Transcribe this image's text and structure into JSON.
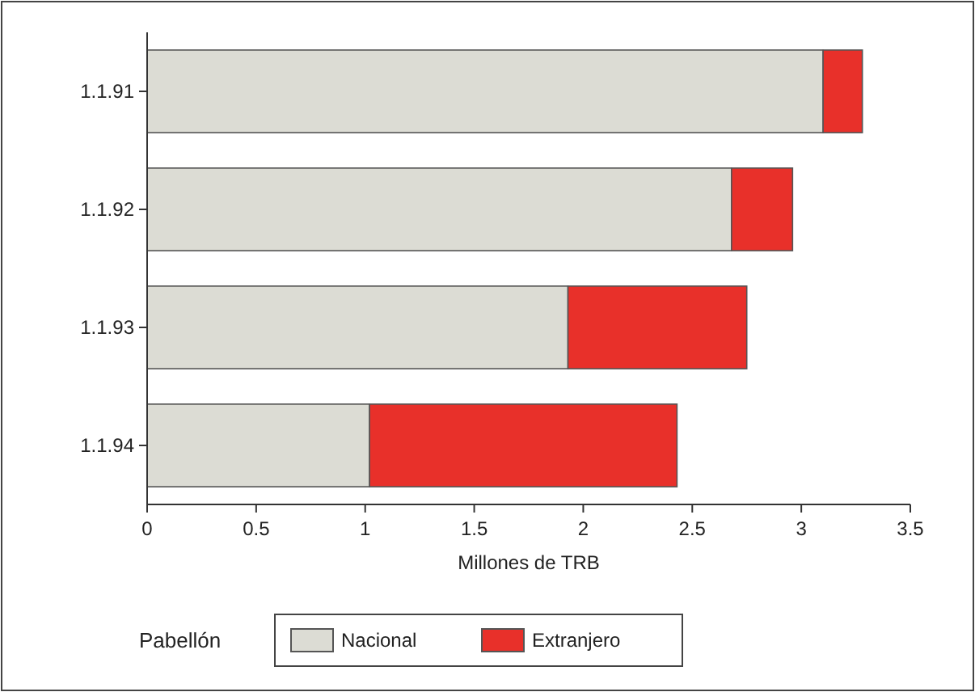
{
  "chart_data": {
    "type": "bar",
    "orientation": "horizontal",
    "stacked": true,
    "categories": [
      "1.1.91",
      "1.1.92",
      "1.1.93",
      "1.1.94"
    ],
    "series": [
      {
        "name": "Nacional",
        "color": "#dcdcd4",
        "values": [
          3.1,
          2.68,
          1.93,
          1.02
        ]
      },
      {
        "name": "Extranjero",
        "color": "#e8302a",
        "values": [
          0.18,
          0.28,
          0.82,
          1.41
        ]
      }
    ],
    "xlim": [
      0,
      3.5
    ],
    "xticks": [
      0,
      0.5,
      1,
      1.5,
      2,
      2.5,
      3,
      3.5
    ],
    "xlabel": "Millones de TRB",
    "legend_title": "Pabellón",
    "legend": "bottom",
    "grid": false
  }
}
